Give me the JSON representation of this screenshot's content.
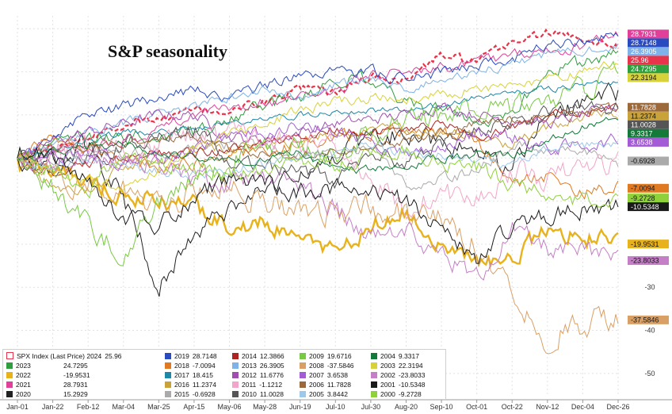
{
  "chart_data": {
    "type": "line",
    "title": "S&P seasonality",
    "x_labels": [
      "Jan-01",
      "Jan-22",
      "Feb-12",
      "Mar-04",
      "Mar-25",
      "Apr-15",
      "May-06",
      "May-28",
      "Jun-19",
      "Jul-10",
      "Jul-30",
      "Aug-20",
      "Sep-10",
      "Oct-01",
      "Oct-22",
      "Nov-12",
      "Dec-04",
      "Dec-26"
    ],
    "y_ticks": [
      -50,
      -40,
      -30
    ],
    "ylim": [
      -55,
      33
    ],
    "legend_header": "SPX Index (Last Price) 2024",
    "series": [
      {
        "name": "2024",
        "value": "25.96",
        "color": "#e8344a",
        "dashed": true,
        "final": 25.96,
        "path": [
          0,
          3,
          5,
          8,
          9,
          11,
          11,
          13,
          16,
          15,
          19,
          18,
          24,
          22,
          27,
          29,
          28,
          26
        ],
        "amp": 0.8
      },
      {
        "name": "2023",
        "value": "24.7295",
        "color": "#2e9e3e",
        "final": 24.73,
        "path": [
          0,
          4,
          5,
          5,
          5,
          6,
          9,
          12,
          14,
          18,
          18,
          13,
          11,
          8,
          11,
          20,
          22,
          24
        ],
        "amp": 1.2
      },
      {
        "name": "2022",
        "value": "-19.9531",
        "color": "#e8b21b",
        "thick": true,
        "final": -19.95,
        "path": [
          0,
          -3,
          -6,
          -8,
          -10,
          -11,
          -16,
          -15,
          -20,
          -21,
          -16,
          -12,
          -20,
          -24,
          -23,
          -17,
          -18,
          -20
        ],
        "amp": 1.6
      },
      {
        "name": "2021",
        "value": "28.7931",
        "color": "#e0409a",
        "final": 28.79,
        "path": [
          0,
          1,
          3,
          4,
          7,
          10,
          12,
          13,
          14,
          16,
          19,
          20,
          21,
          22,
          24,
          25,
          26,
          29
        ],
        "amp": 1.0
      },
      {
        "name": "2020",
        "value": "15.2929",
        "color": "#222222",
        "final": 15.29,
        "path": [
          0,
          -1,
          3,
          -9,
          -30,
          -18,
          -12,
          -7,
          -4,
          0,
          5,
          6,
          3,
          1,
          -2,
          10,
          13,
          15
        ],
        "amp": 1.8
      },
      {
        "name": "2019",
        "value": "28.7148",
        "color": "#2a4bbf",
        "final": 28.71,
        "path": [
          0,
          5,
          10,
          12,
          14,
          16,
          13,
          17,
          19,
          20,
          20,
          18,
          20,
          22,
          23,
          26,
          27,
          29
        ],
        "amp": 1.0
      },
      {
        "name": "2018",
        "value": "-7.0094",
        "color": "#e07a22",
        "final": -7.01,
        "path": [
          0,
          5,
          2,
          -1,
          -2,
          -1,
          1,
          2,
          3,
          5,
          6,
          7,
          6,
          4,
          -6,
          -4,
          -8,
          -7
        ],
        "amp": 1.2
      },
      {
        "name": "2017",
        "value": "18.415",
        "color": "#1e88a8",
        "final": 18.42,
        "path": [
          0,
          2,
          4,
          6,
          6,
          7,
          8,
          9,
          10,
          11,
          11,
          11,
          12,
          14,
          15,
          16,
          17,
          18
        ],
        "amp": 0.6
      },
      {
        "name": "2016",
        "value": "11.2374",
        "color": "#c9a23a",
        "final": 11.24,
        "path": [
          0,
          -7,
          -8,
          -2,
          0,
          2,
          2,
          3,
          3,
          6,
          7,
          7,
          6,
          5,
          3,
          7,
          10,
          11
        ],
        "amp": 1.0
      },
      {
        "name": "2015",
        "value": "-0.6928",
        "color": "#aaaaaa",
        "final": -0.69,
        "path": [
          0,
          -1,
          2,
          1,
          1,
          2,
          3,
          3,
          1,
          1,
          2,
          -6,
          -5,
          -3,
          3,
          2,
          1,
          -1
        ],
        "amp": 1.0
      },
      {
        "name": "2014",
        "value": "12.3866",
        "color": "#b02323",
        "final": 12.39,
        "path": [
          0,
          -3,
          -1,
          0,
          1,
          1,
          2,
          4,
          5,
          7,
          6,
          7,
          8,
          5,
          7,
          10,
          11,
          12
        ],
        "amp": 0.9
      },
      {
        "name": "2013",
        "value": "26.3905",
        "color": "#7fb2e8",
        "final": 26.39,
        "path": [
          0,
          4,
          6,
          8,
          10,
          12,
          14,
          16,
          14,
          17,
          18,
          16,
          18,
          20,
          22,
          24,
          25,
          26
        ],
        "amp": 0.8
      },
      {
        "name": "2012",
        "value": "11.6776",
        "color": "#a14db0",
        "final": 11.68,
        "path": [
          0,
          4,
          6,
          8,
          10,
          10,
          5,
          4,
          6,
          8,
          9,
          10,
          12,
          10,
          9,
          8,
          10,
          12
        ],
        "amp": 1.0
      },
      {
        "name": "2011",
        "value": "-1.1212",
        "color": "#f2a5c8",
        "final": -1.12,
        "path": [
          0,
          1,
          4,
          2,
          3,
          5,
          6,
          4,
          3,
          4,
          -5,
          -12,
          -8,
          -10,
          -3,
          -5,
          -2,
          -1
        ],
        "amp": 2.0
      },
      {
        "name": "2010",
        "value": "11.0028",
        "color": "#555555",
        "final": 11.0,
        "path": [
          0,
          -3,
          0,
          3,
          5,
          7,
          0,
          -2,
          -3,
          -6,
          1,
          -1,
          3,
          6,
          9,
          10,
          11,
          11
        ],
        "amp": 1.4
      },
      {
        "name": "2009",
        "value": "19.6716",
        "color": "#7ac943",
        "final": 19.67,
        "path": [
          0,
          -7,
          -15,
          -23,
          -10,
          -5,
          0,
          3,
          2,
          0,
          6,
          8,
          10,
          11,
          12,
          14,
          16,
          19
        ],
        "amp": 2.0
      },
      {
        "name": "2008",
        "value": "-37.5846",
        "color": "#d9a066",
        "final": -37.58,
        "path": [
          0,
          -5,
          -7,
          -8,
          -10,
          -8,
          -7,
          -10,
          -12,
          -12,
          -12,
          -13,
          -15,
          -20,
          -30,
          -42,
          -38,
          -37
        ],
        "amp": 2.4
      },
      {
        "name": "2007",
        "value": "3.6538",
        "color": "#a45cd6",
        "final": 3.65,
        "path": [
          0,
          1,
          1,
          -1,
          0,
          2,
          5,
          6,
          8,
          6,
          3,
          1,
          2,
          6,
          5,
          2,
          3,
          4
        ],
        "amp": 1.2
      },
      {
        "name": "2006",
        "value": "11.7828",
        "color": "#9c6a3a",
        "final": 11.78,
        "path": [
          0,
          2,
          3,
          3,
          4,
          5,
          2,
          1,
          1,
          2,
          3,
          4,
          6,
          8,
          9,
          10,
          11,
          12
        ],
        "amp": 0.8
      },
      {
        "name": "2005",
        "value": "3.8442",
        "color": "#9fc7e8",
        "final": 3.84,
        "path": [
          0,
          -2,
          0,
          -1,
          -3,
          -4,
          -3,
          -1,
          0,
          2,
          3,
          1,
          1,
          -1,
          -2,
          2,
          3,
          4
        ],
        "amp": 0.9
      },
      {
        "name": "2004",
        "value": "9.3317",
        "color": "#147a3a",
        "final": 9.33,
        "path": [
          0,
          2,
          3,
          3,
          2,
          0,
          -1,
          0,
          1,
          -2,
          -3,
          -2,
          0,
          1,
          1,
          4,
          7,
          9
        ],
        "amp": 0.8
      },
      {
        "name": "2003",
        "value": "22.3194",
        "color": "#d8d23a",
        "final": 22.32,
        "path": [
          0,
          -3,
          -5,
          -7,
          -3,
          2,
          6,
          8,
          11,
          13,
          14,
          14,
          15,
          16,
          17,
          18,
          20,
          22
        ],
        "amp": 0.9
      },
      {
        "name": "2002",
        "value": "-23.8033",
        "color": "#c47fc6",
        "final": -23.8,
        "path": [
          0,
          -1,
          -1,
          1,
          -2,
          -5,
          -6,
          -4,
          -7,
          -12,
          -18,
          -17,
          -22,
          -28,
          -17,
          -21,
          -22,
          -24
        ],
        "amp": 1.8
      },
      {
        "name": "2001",
        "value": "-10.5348",
        "color": "#1a1a1a",
        "final": -10.53,
        "path": [
          0,
          1,
          -6,
          -14,
          -16,
          -9,
          -5,
          -6,
          -8,
          -7,
          -8,
          -10,
          -17,
          -24,
          -15,
          -13,
          -12,
          -11
        ],
        "amp": 1.6
      },
      {
        "name": "2000",
        "value": "-9.2728",
        "color": "#8fd13a",
        "final": -9.27,
        "path": [
          0,
          -3,
          -7,
          0,
          -1,
          -3,
          -4,
          -2,
          -1,
          -2,
          1,
          2,
          -1,
          -2,
          -6,
          -8,
          -10,
          -9
        ],
        "amp": 1.5
      }
    ]
  }
}
